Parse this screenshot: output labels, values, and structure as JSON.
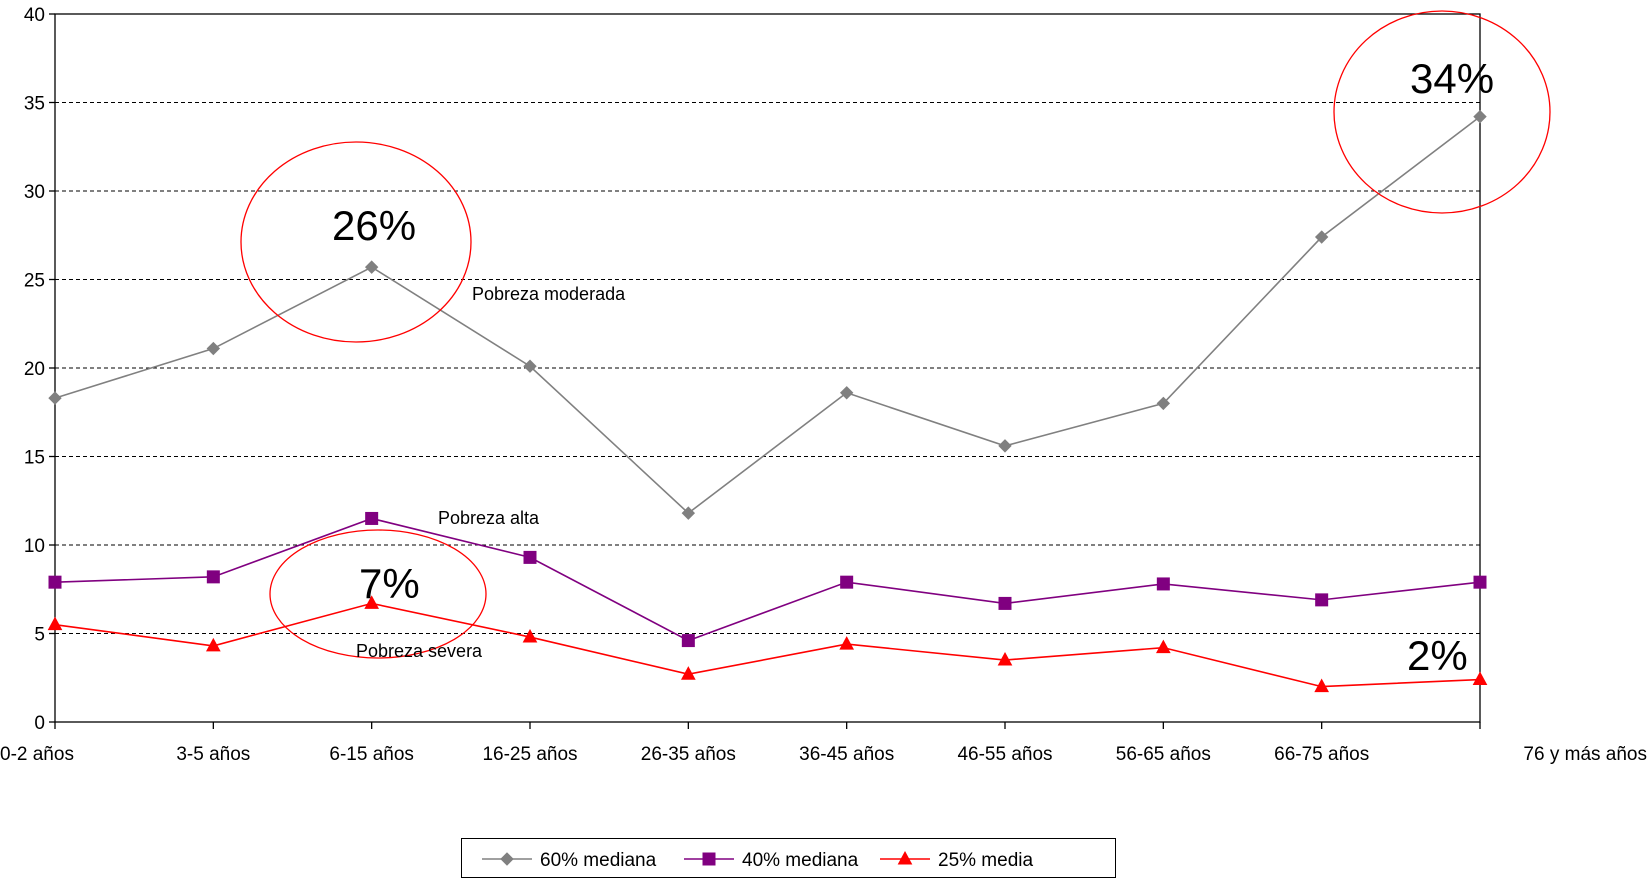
{
  "chart_data": {
    "type": "line",
    "categories": [
      "0-2 años",
      "3-5 años",
      "6-15 años",
      "16-25 años",
      "26-35 años",
      "36-45 años",
      "46-55 años",
      "56-65 años",
      "66-75 años",
      "76 y más años"
    ],
    "ylim": [
      0,
      40
    ],
    "yticks": [
      0,
      5,
      10,
      15,
      20,
      25,
      30,
      35,
      40
    ],
    "grid": "horizontal dashed",
    "legend_position": "bottom",
    "series": [
      {
        "name": "60% mediana",
        "marker": "diamond",
        "color": "#808080",
        "values": [
          18.3,
          21.1,
          25.7,
          20.1,
          11.8,
          18.6,
          15.6,
          18.0,
          27.4,
          34.2
        ]
      },
      {
        "name": "40% mediana",
        "marker": "square",
        "color": "#800080",
        "values": [
          7.9,
          8.2,
          11.5,
          9.3,
          4.6,
          7.9,
          6.7,
          7.8,
          6.9,
          7.9
        ]
      },
      {
        "name": "25% media",
        "marker": "triangle",
        "color": "#ff0000",
        "values": [
          5.5,
          4.3,
          6.7,
          4.8,
          2.7,
          4.4,
          3.5,
          4.2,
          2.0,
          2.4
        ]
      }
    ],
    "annotations": {
      "series_labels": [
        "Pobreza moderada",
        "Pobreza alta",
        "Pobreza severa"
      ],
      "highlights": [
        "26%",
        "34%",
        "7%",
        "2%"
      ]
    }
  }
}
